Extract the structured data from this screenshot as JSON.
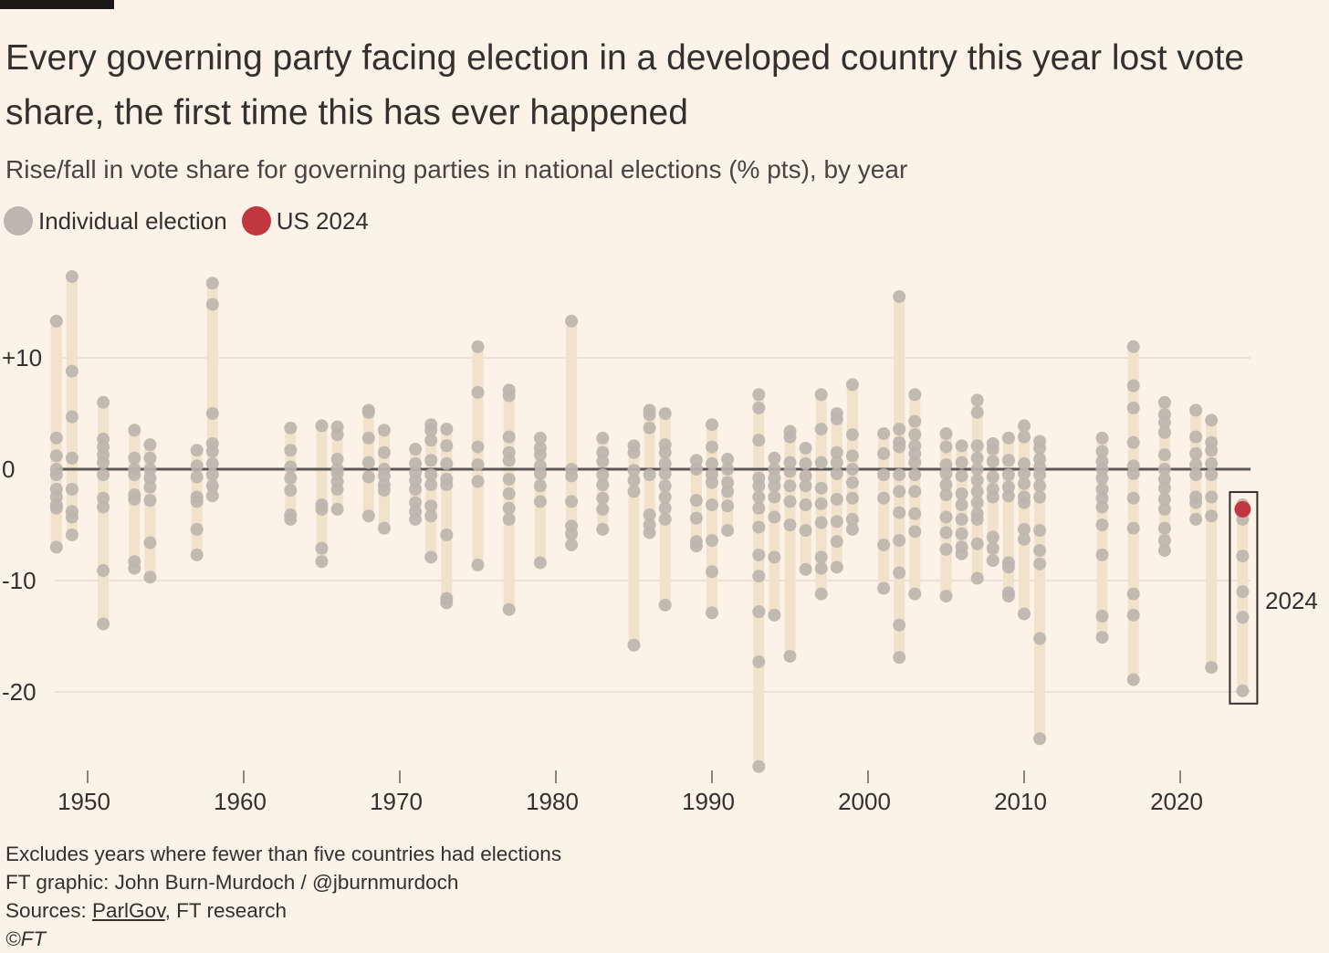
{
  "title": "Every governing party facing election in a developed country this year lost vote share, the first time this has ever happened",
  "subtitle": "Rise/fall in vote share for governing parties in national elections (% pts), by year",
  "legend": [
    {
      "label": "Individual election",
      "color": "#bdb5ae"
    },
    {
      "label": "US 2024",
      "color": "#c2363f"
    }
  ],
  "footer": {
    "note": "Excludes years where fewer than five countries had elections",
    "credit": "FT graphic: John Burn-Murdoch / @jburnmurdoch",
    "sources_label": "Sources: ",
    "sources_link": "ParlGov",
    "sources_rest": ", FT research",
    "copyright": "©FT"
  },
  "chart_data": {
    "type": "scatter",
    "title": "Every governing party facing election in a developed country this year lost vote share, the first time this has ever happened",
    "subtitle": "Rise/fall in vote share for governing parties in national elections (% pts), by year",
    "xlim": [
      1948,
      2024
    ],
    "ylim": [
      -27,
      17.5
    ],
    "x_ticks": [
      1950,
      1960,
      1970,
      1980,
      1990,
      2000,
      2010,
      2020
    ],
    "x_tick_labels": [
      "1950",
      "1960",
      "1970",
      "1980",
      "1990",
      "2000",
      "2010",
      "2020"
    ],
    "y_ticks": [
      10,
      0,
      -10,
      -20
    ],
    "y_tick_labels": [
      "+10",
      "0",
      "-10",
      "-20"
    ],
    "grid": true,
    "legend_placement": "top-left",
    "highlight": {
      "year": 2024,
      "label": "2024",
      "us_value": -3.6,
      "color": "#c2363f"
    },
    "colors": {
      "dot": "#bdb5ae",
      "range_bar": "#f2e1cb",
      "zero_line": "#5c5855",
      "grid": "#e6dbd0"
    },
    "years": [
      {
        "year": 1948,
        "values": [
          13.3,
          2.8,
          1.2,
          0,
          -0.5,
          -1.8,
          -2.5,
          -3.2,
          -3.5,
          -7
        ]
      },
      {
        "year": 1949,
        "values": [
          17.3,
          8.8,
          4.7,
          1,
          -1.8,
          -3.8,
          -4.3,
          -5.9
        ]
      },
      {
        "year": 1951,
        "values": [
          6,
          2.7,
          2,
          1.3,
          0.6,
          -0.5,
          -2.6,
          -3.4,
          -9.1,
          -13.9
        ]
      },
      {
        "year": 1953,
        "values": [
          3.5,
          1,
          0,
          -0.5,
          -2.3,
          -2.7,
          -8.3,
          -8.9
        ]
      },
      {
        "year": 1954,
        "values": [
          2.2,
          1,
          0,
          -0.8,
          -1.6,
          -2.8,
          -6.6,
          -9.7
        ]
      },
      {
        "year": 1957,
        "values": [
          1.7,
          0.3,
          -0.7,
          -2.5,
          -2.9,
          -5.4,
          -7.7
        ]
      },
      {
        "year": 1958,
        "values": [
          16.7,
          14.8,
          5,
          2.3,
          1.6,
          0.5,
          -0.5,
          -1.5,
          -2.4
        ]
      },
      {
        "year": 1963,
        "values": [
          3.7,
          1.7,
          0.2,
          -0.8,
          -1.9,
          -4.1,
          -4.5
        ]
      },
      {
        "year": 1965,
        "values": [
          3.9,
          -3.2,
          -3.6,
          -7.1,
          -8.3
        ]
      },
      {
        "year": 1966,
        "values": [
          3.8,
          3.1,
          0.9,
          0,
          -0.4,
          -1.1,
          -1.8,
          -3.6
        ]
      },
      {
        "year": 1968,
        "values": [
          5.3,
          5.1,
          2.8,
          0.6,
          -0.7,
          -4.2
        ]
      },
      {
        "year": 1969,
        "values": [
          3.5,
          1.5,
          0,
          -0.6,
          -1.4,
          -1.9,
          -5.3
        ]
      },
      {
        "year": 1971,
        "values": [
          1.8,
          0.5,
          -0.3,
          -1,
          -1.8,
          -3,
          -3.8,
          -4.5
        ]
      },
      {
        "year": 1972,
        "values": [
          4,
          3.5,
          2.6,
          0.8,
          -0.5,
          -1.4,
          -3.3,
          -4.2,
          -7.9
        ]
      },
      {
        "year": 1973,
        "values": [
          3.6,
          2.1,
          0.5,
          -0.9,
          -1.4,
          -5.9,
          -11.6,
          -12
        ]
      },
      {
        "year": 1975,
        "values": [
          11,
          6.9,
          2,
          0.4,
          -1.1,
          -8.6
        ]
      },
      {
        "year": 1977,
        "values": [
          7.1,
          6.6,
          2.9,
          1.5,
          0.8,
          -0.9,
          -2.2,
          -3.5,
          -4.5,
          -12.6
        ]
      },
      {
        "year": 1979,
        "values": [
          2.8,
          1.9,
          1.3,
          0.3,
          -0.4,
          -1.5,
          -2.9,
          -8.4
        ]
      },
      {
        "year": 1981,
        "values": [
          13.3,
          0,
          -0.6,
          -2.9,
          -5.1,
          -5.8,
          -6.8
        ]
      },
      {
        "year": 1983,
        "values": [
          2.8,
          1.5,
          0.7,
          -0.5,
          -1.4,
          -2.6,
          -3.6,
          -5.4
        ]
      },
      {
        "year": 1985,
        "values": [
          2.1,
          1.5,
          -0.1,
          -1,
          -2,
          -15.8
        ]
      },
      {
        "year": 1986,
        "values": [
          5.3,
          4.9,
          3.7,
          -0.5,
          -4.1,
          -5,
          -5.7
        ]
      },
      {
        "year": 1987,
        "values": [
          5,
          2.2,
          1.5,
          0.5,
          -0.4,
          -1.5,
          -2.5,
          -3.5,
          -4.5,
          -12.2
        ]
      },
      {
        "year": 1989,
        "values": [
          0.8,
          0,
          -2.8,
          -4.4,
          -6.5,
          -6.9
        ]
      },
      {
        "year": 1990,
        "values": [
          4,
          2,
          0.5,
          -0.5,
          -1.2,
          -3.2,
          -6.4,
          -9.2,
          -12.9
        ]
      },
      {
        "year": 1991,
        "values": [
          0.9,
          0,
          -1.2,
          -2,
          -3.3,
          -5.5
        ]
      },
      {
        "year": 1993,
        "values": [
          6.7,
          5.5,
          2.6,
          -0.8,
          -1.5,
          -2.5,
          -3.5,
          -5.2,
          -7.7,
          -9.6,
          -12.8,
          -17.3,
          -26.7
        ]
      },
      {
        "year": 1994,
        "values": [
          1,
          0,
          -0.8,
          -1.5,
          -2.5,
          -4.3,
          -7.9,
          -13.1
        ]
      },
      {
        "year": 1995,
        "values": [
          3.4,
          2.9,
          0.6,
          -0.2,
          -1.5,
          -2.9,
          -5,
          -16.8
        ]
      },
      {
        "year": 1996,
        "values": [
          1.9,
          0.5,
          -0.6,
          -1.5,
          -3.2,
          -5.5,
          -9
        ]
      },
      {
        "year": 1997,
        "values": [
          6.7,
          3.6,
          0.6,
          -1.7,
          -3.1,
          -4.8,
          -7.9,
          -8.9,
          -11.2
        ]
      },
      {
        "year": 1998,
        "values": [
          5,
          4.5,
          1.5,
          0.6,
          -0.4,
          -2.7,
          -4.7,
          -6.5,
          -8.8
        ]
      },
      {
        "year": 1999,
        "values": [
          7.6,
          3.1,
          1.2,
          0,
          -1.2,
          -2.6,
          -4.5,
          -5.4
        ]
      },
      {
        "year": 2001,
        "values": [
          3.2,
          1.4,
          -0.5,
          -2.6,
          -6.8,
          -10.7
        ]
      },
      {
        "year": 2002,
        "values": [
          15.5,
          3.6,
          2.4,
          2,
          -0.5,
          -2,
          -3.9,
          -6.4,
          -9.3,
          -14,
          -16.9
        ]
      },
      {
        "year": 2003,
        "values": [
          6.7,
          4.3,
          3.1,
          2.1,
          1.4,
          0.6,
          -0.5,
          -2,
          -4,
          -5.6,
          -11.2
        ]
      },
      {
        "year": 2005,
        "values": [
          3.2,
          2,
          0.4,
          -0.4,
          -1.4,
          -2.3,
          -4.3,
          -5.7,
          -7.2,
          -11.4
        ]
      },
      {
        "year": 2006,
        "values": [
          2.1,
          0.6,
          -0.6,
          -2.2,
          -3.2,
          -4.5,
          -5.8,
          -7,
          -7.6
        ]
      },
      {
        "year": 2007,
        "values": [
          6.2,
          5.1,
          2.1,
          1,
          0,
          -1,
          -2,
          -3,
          -4,
          -4.5,
          -6.7,
          -9.8
        ]
      },
      {
        "year": 2008,
        "values": [
          2.3,
          1.8,
          0.7,
          -0.7,
          -1.8,
          -2.5,
          -6.1,
          -7.1,
          -8.2
        ]
      },
      {
        "year": 2009,
        "values": [
          2.8,
          0.8,
          -0.5,
          -1.6,
          -2.4,
          -8.4,
          -8.8,
          -11.1,
          -11.4
        ]
      },
      {
        "year": 2010,
        "values": [
          3.9,
          2.9,
          0.5,
          -0.4,
          -1.3,
          -2.5,
          -3,
          -5.4,
          -6.3,
          -13
        ]
      },
      {
        "year": 2011,
        "values": [
          2.5,
          1.9,
          0.9,
          0.2,
          -0.5,
          -1.5,
          -2.5,
          -5.5,
          -7.3,
          -8.5,
          -15.2,
          -24.2
        ]
      },
      {
        "year": 2015,
        "values": [
          2.8,
          1.6,
          0.7,
          0,
          -0.8,
          -1.8,
          -2.6,
          -3.4,
          -5,
          -7.7,
          -13.2,
          -15.1
        ]
      },
      {
        "year": 2017,
        "values": [
          11,
          7.5,
          5.5,
          2.4,
          0.3,
          -0.4,
          -2.6,
          -5.3,
          -11.2,
          -13.1,
          -18.9
        ]
      },
      {
        "year": 2019,
        "values": [
          6,
          4.9,
          4.2,
          3.3,
          1.3,
          0,
          -0.9,
          -1.7,
          -2.7,
          -3.6,
          -5.3,
          -6.4,
          -7.3
        ]
      },
      {
        "year": 2021,
        "values": [
          5.3,
          2.9,
          1.4,
          0.4,
          -0.5,
          -2.5,
          -3,
          -4.5
        ]
      },
      {
        "year": 2022,
        "values": [
          4.4,
          2.4,
          1.7,
          0.5,
          -0.5,
          -2.5,
          -4.2,
          -17.8
        ]
      },
      {
        "year": 2024,
        "values": [
          -3.2,
          -4.5,
          -7.8,
          -11,
          -13.3,
          -19.9
        ]
      }
    ]
  }
}
